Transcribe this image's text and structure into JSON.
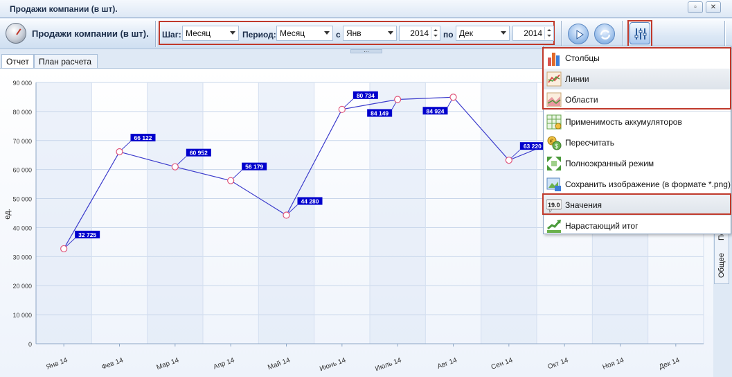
{
  "window": {
    "title": "Продажи компании (в шт)."
  },
  "toolbar": {
    "title": "Продажи компании (в шт).",
    "step_label": "Шаг:",
    "step_value": "Месяц",
    "period_label": "Период:",
    "period_value": "Месяц",
    "from_label": "с",
    "from_month": "Янв",
    "from_year": "2014",
    "to_label": "по",
    "to_month": "Дек",
    "to_year": "2014"
  },
  "tabs": [
    {
      "label": "Отчет"
    },
    {
      "label": "План расчета"
    }
  ],
  "side_tabs": [
    {
      "label": "Общее"
    },
    {
      "label": "Пе"
    }
  ],
  "menu": {
    "items": [
      {
        "label": "Столбцы",
        "icon": "bar-chart-icon"
      },
      {
        "label": "Линии",
        "icon": "line-chart-icon"
      },
      {
        "label": "Области",
        "icon": "area-chart-icon"
      },
      {
        "label": "Применимость аккумуляторов",
        "icon": "table-icon"
      },
      {
        "label": "Пересчитать",
        "icon": "recalculate-icon"
      },
      {
        "label": "Полноэкранный режим",
        "icon": "fullscreen-icon"
      },
      {
        "label": "Сохранить изображение (в формате *.png)",
        "icon": "save-image-icon"
      },
      {
        "label": "Значения",
        "icon": "values-icon",
        "icon_text": "19.0"
      },
      {
        "label": "Нарастающий итог",
        "icon": "cumulative-icon"
      }
    ]
  },
  "chart_data": {
    "type": "line",
    "ylabel": "ед.",
    "ylim": [
      0,
      90000
    ],
    "yticks": [
      "0",
      "10 000",
      "20 000",
      "30 000",
      "40 000",
      "50 000",
      "60 000",
      "70 000",
      "80 000",
      "90 000"
    ],
    "categories": [
      "Янв 14",
      "Фев 14",
      "Мар 14",
      "Апр 14",
      "Май 14",
      "Июнь 14",
      "Июль 14",
      "Авг 14",
      "Сен 14",
      "Окт 14",
      "Ноя 14",
      "Дек 14"
    ],
    "values": [
      32725,
      66122,
      60952,
      56179,
      44280,
      80734,
      84149,
      84924,
      63220,
      71000,
      null,
      null
    ],
    "value_labels": [
      "32 725",
      "66 122",
      "60 952",
      "56 179",
      "44 280",
      "80 734",
      "84 149",
      "84 924",
      "63 220",
      "",
      "",
      ""
    ],
    "line_color": "#3c3ccc",
    "marker_color": "#e0557a",
    "label_bg": "#0000cc",
    "grid": true
  }
}
